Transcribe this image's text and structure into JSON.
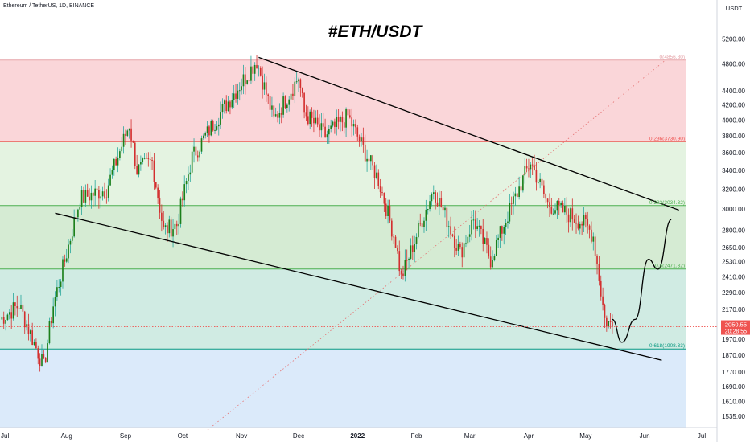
{
  "header": {
    "symbol": "Ethereum / TetherUS, 1D, BINANCE",
    "axis_unit": "USDT"
  },
  "chart_data": {
    "type": "candlestick",
    "title": "#ETH/USDT",
    "y_scale": "log",
    "ylim": [
      1480,
      5600
    ],
    "y_ticks": [
      5200,
      4800,
      4400,
      4200,
      4000,
      3800,
      3600,
      3400,
      3200,
      3000,
      2800,
      2650,
      2530,
      2410,
      2290,
      2170,
      2050,
      1970,
      1870,
      1770,
      1690,
      1610,
      1535
    ],
    "x_tick_labels": [
      "Jul",
      "Aug",
      "Sep",
      "Oct",
      "Nov",
      "Dec",
      "2022",
      "Feb",
      "Mar",
      "Apr",
      "May",
      "Jun",
      "Jul"
    ],
    "fib_levels": [
      {
        "label": "0(4856.80)",
        "value": 4856.8,
        "color": "#e5a3a8"
      },
      {
        "label": "0.236(3730.90)",
        "value": 3730.9,
        "color": "#ef5350"
      },
      {
        "label": "0.382(3034.32)",
        "value": 3034.32,
        "color": "#4caf50"
      },
      {
        "label": "0.5(2471.32)",
        "value": 2471.32,
        "color": "#4caf50"
      },
      {
        "label": "0.618(1908.33)",
        "value": 1908.33,
        "color": "#089981"
      }
    ],
    "fib_zones": [
      {
        "from": 4856.8,
        "to": 3730.9,
        "color": "#fad6d9"
      },
      {
        "from": 3730.9,
        "to": 3034.32,
        "color": "#e4f3e1"
      },
      {
        "from": 3034.32,
        "to": 2471.32,
        "color": "#d5ebd3"
      },
      {
        "from": 2471.32,
        "to": 1908.33,
        "color": "#d0ebe3"
      },
      {
        "from": 1908.33,
        "to": 1480,
        "color": "#dbeafa"
      }
    ],
    "current_price": "2050.55",
    "countdown": "20:28:55",
    "colors": {
      "up": "#26a69a",
      "up_body": "#1b7f1b",
      "down": "#d32f2f",
      "trendline": "#000000"
    },
    "series": [
      {
        "date": "2021-06-27",
        "close": 2100
      },
      {
        "date": "2021-07-07",
        "close": 2200
      },
      {
        "date": "2021-07-20",
        "close": 1800
      },
      {
        "date": "2021-07-25",
        "close": 2200
      },
      {
        "date": "2021-08-01",
        "close": 2600
      },
      {
        "date": "2021-08-08",
        "close": 3100
      },
      {
        "date": "2021-08-22",
        "close": 3200
      },
      {
        "date": "2021-09-03",
        "close": 3950
      },
      {
        "date": "2021-09-07",
        "close": 3400
      },
      {
        "date": "2021-09-15",
        "close": 3500
      },
      {
        "date": "2021-09-21",
        "close": 2800
      },
      {
        "date": "2021-09-28",
        "close": 2850
      },
      {
        "date": "2021-10-06",
        "close": 3550
      },
      {
        "date": "2021-10-21",
        "close": 4100
      },
      {
        "date": "2021-11-09",
        "close": 4850
      },
      {
        "date": "2021-11-18",
        "close": 4000
      },
      {
        "date": "2021-12-01",
        "close": 4600
      },
      {
        "date": "2021-12-04",
        "close": 4100
      },
      {
        "date": "2021-12-15",
        "close": 3800
      },
      {
        "date": "2021-12-27",
        "close": 4050
      },
      {
        "date": "2022-01-05",
        "close": 3600
      },
      {
        "date": "2022-01-12",
        "close": 3300
      },
      {
        "date": "2022-01-21",
        "close": 2700
      },
      {
        "date": "2022-01-24",
        "close": 2400
      },
      {
        "date": "2022-02-04",
        "close": 2900
      },
      {
        "date": "2022-02-10",
        "close": 3200
      },
      {
        "date": "2022-02-17",
        "close": 2900
      },
      {
        "date": "2022-02-24",
        "close": 2600
      },
      {
        "date": "2022-03-03",
        "close": 2900
      },
      {
        "date": "2022-03-12",
        "close": 2550
      },
      {
        "date": "2022-03-20",
        "close": 2900
      },
      {
        "date": "2022-04-02",
        "close": 3500
      },
      {
        "date": "2022-04-11",
        "close": 3050
      },
      {
        "date": "2022-04-22",
        "close": 2950
      },
      {
        "date": "2022-05-01",
        "close": 2850
      },
      {
        "date": "2022-05-05",
        "close": 2750
      },
      {
        "date": "2022-05-11",
        "close": 2100
      },
      {
        "date": "2022-05-15",
        "close": 2050
      }
    ],
    "projection": [
      {
        "date": "2022-05-20",
        "value": 1950
      },
      {
        "date": "2022-05-27",
        "value": 2100
      },
      {
        "date": "2022-06-03",
        "value": 2550
      },
      {
        "date": "2022-06-08",
        "value": 2470
      },
      {
        "date": "2022-06-15",
        "value": 2900
      }
    ],
    "trendlines": [
      {
        "name": "upper",
        "from": {
          "date": "2021-11-10",
          "value": 4900
        },
        "to": {
          "date": "2022-06-19",
          "value": 2990
        }
      },
      {
        "name": "lower",
        "from": {
          "date": "2021-07-26",
          "value": 2960
        },
        "to": {
          "date": "2022-06-10",
          "value": 1840
        }
      }
    ]
  }
}
